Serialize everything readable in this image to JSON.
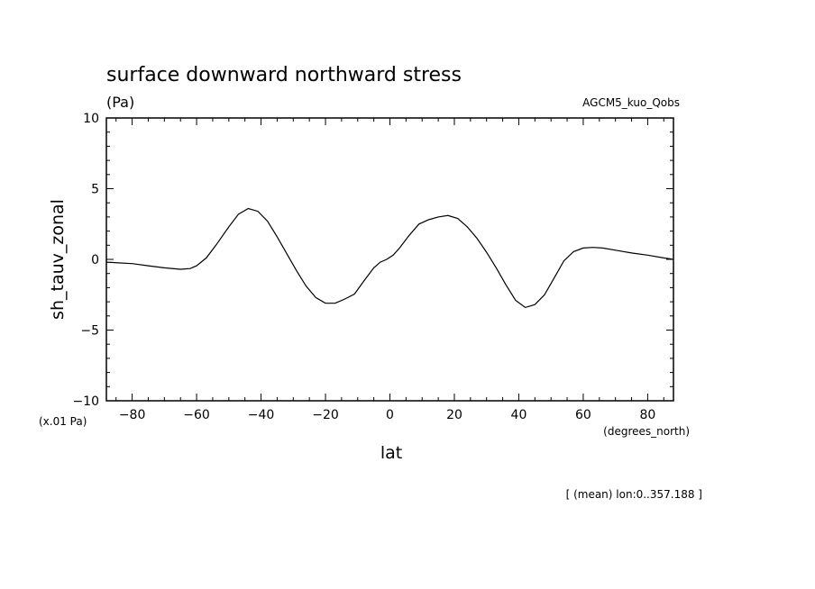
{
  "chart_data": {
    "type": "line",
    "title": "surface downward northward stress",
    "units": "(Pa)",
    "model": "AGCM5_kuo_Qobs",
    "xlabel": "lat",
    "ylabel": "sh_tauv_zonal",
    "x_units": "(degrees_north)",
    "y_scale_note": "(x.01 Pa)",
    "footnote": "[ (mean) lon:0..357.188 ]",
    "xlim": [
      -88,
      88
    ],
    "ylim": [
      -10,
      10
    ],
    "xticks": [
      -80,
      -60,
      -40,
      -20,
      0,
      20,
      40,
      60,
      80
    ],
    "xtick_labels": [
      "−80",
      "−60",
      "−40",
      "−20",
      "0",
      "20",
      "40",
      "60",
      "80"
    ],
    "yticks": [
      -10,
      -5,
      0,
      5,
      10
    ],
    "ytick_labels": [
      "−10",
      "−5",
      "0",
      "5",
      "10"
    ],
    "line_color": "#000000",
    "series": [
      {
        "x": [
          -88,
          -80,
          -75,
          -70,
          -65,
          -62,
          -60,
          -57,
          -54,
          -50,
          -47,
          -44,
          -41,
          -38,
          -35,
          -32,
          -29,
          -26,
          -23,
          -20,
          -17,
          -14,
          -11,
          -8,
          -5,
          -3,
          -1,
          1,
          3,
          6,
          9,
          12,
          15,
          18,
          21,
          24,
          27,
          30,
          33,
          36,
          39,
          42,
          45,
          48,
          51,
          54,
          57,
          60,
          63,
          66,
          70,
          75,
          80,
          85,
          88
        ],
        "values": [
          -0.2,
          -0.3,
          -0.45,
          -0.6,
          -0.7,
          -0.65,
          -0.45,
          0.1,
          1.0,
          2.3,
          3.2,
          3.6,
          3.4,
          2.7,
          1.6,
          0.4,
          -0.8,
          -1.9,
          -2.7,
          -3.1,
          -3.1,
          -2.8,
          -2.45,
          -1.5,
          -0.6,
          -0.2,
          0.0,
          0.3,
          0.8,
          1.7,
          2.5,
          2.8,
          3.0,
          3.1,
          2.9,
          2.3,
          1.5,
          0.5,
          -0.6,
          -1.8,
          -2.9,
          -3.4,
          -3.2,
          -2.5,
          -1.3,
          -0.1,
          0.55,
          0.8,
          0.85,
          0.8,
          0.65,
          0.45,
          0.3,
          0.1,
          0.0
        ]
      }
    ]
  }
}
